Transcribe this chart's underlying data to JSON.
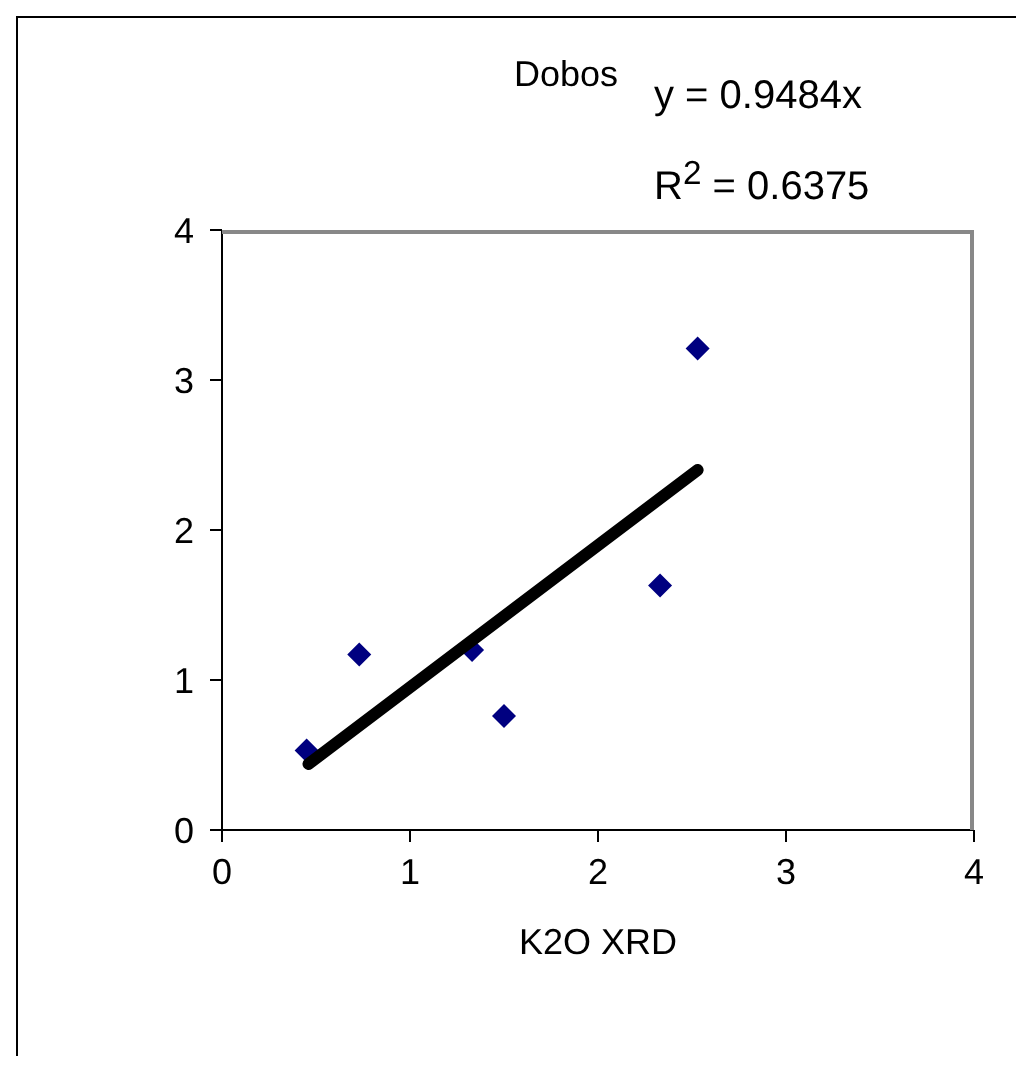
{
  "chart_data": {
    "type": "scatter",
    "title": "Dobos",
    "xlabel": "K2O XRD",
    "annotations": [
      "y = 0.9484x",
      "R$^{2}$ = 0.6375"
    ],
    "series": [
      {
        "color": "#000080",
        "marker": "diamond",
        "x": [
          0.45,
          0.73,
          1.33,
          1.5,
          2.33,
          2.53
        ],
        "values": [
          0.53,
          1.17,
          1.2,
          0.76,
          1.63,
          3.21
        ]
      },
      {
        "type": "line",
        "color": "#000000",
        "marker": "none",
        "x": [
          0.46,
          2.53
        ],
        "values": [
          0.44,
          2.4
        ]
      }
    ],
    "xlim": [
      0,
      4
    ],
    "xticks": [
      0,
      1,
      2,
      3,
      4
    ],
    "ylim": [
      0,
      4
    ],
    "yticks": [
      0,
      1,
      2,
      3,
      4
    ],
    "grid": false,
    "legend": false
  }
}
